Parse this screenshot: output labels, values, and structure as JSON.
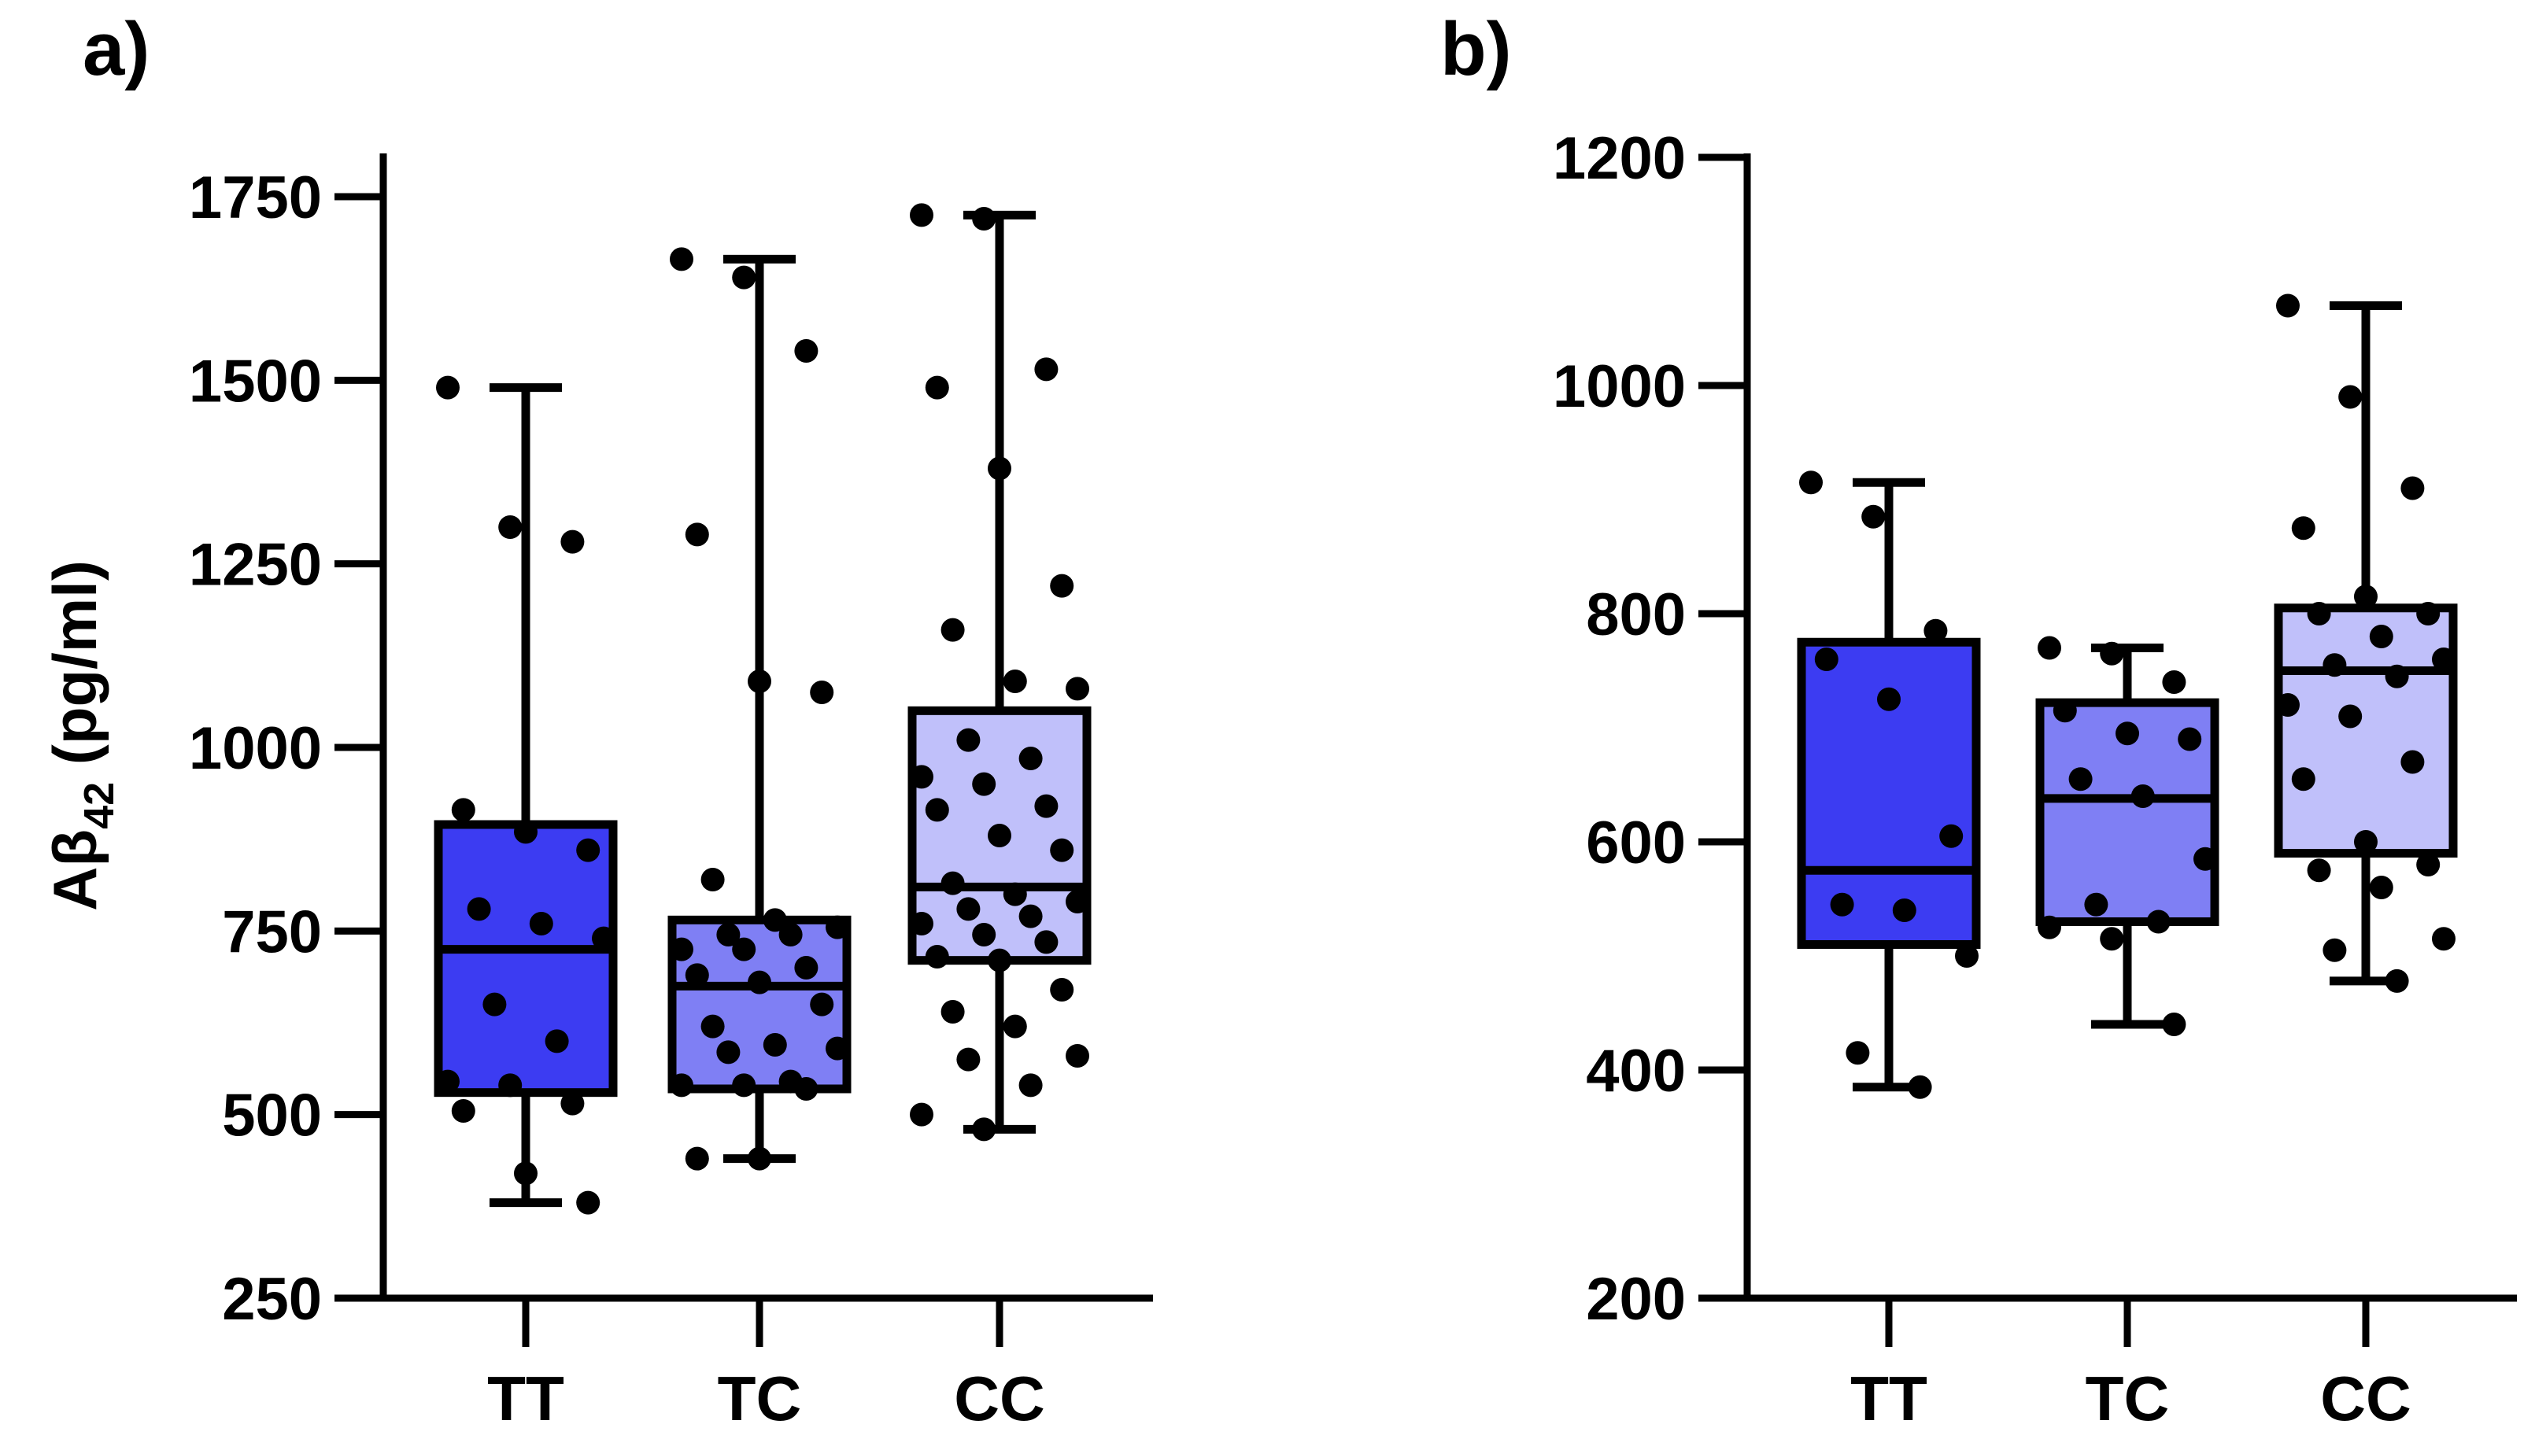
{
  "chart_data": [
    {
      "type": "box",
      "panel_label": "a)",
      "ylabel_main": "Aβ",
      "ylabel_sub": "42",
      "ylabel_unit": "(pg/ml)",
      "ylim": [
        250,
        1800
      ],
      "yticks": [
        250,
        500,
        750,
        1000,
        1250,
        1500,
        1750
      ],
      "categories": [
        "TT",
        "TC",
        "CC"
      ],
      "colors": [
        "#3c3cf2",
        "#7f7ff4",
        "#c0c0fa"
      ],
      "boxes": [
        {
          "min": 380,
          "q1": 530,
          "median": 725,
          "q3": 895,
          "max": 1490,
          "points": [
            1490,
            1300,
            1280,
            915,
            885,
            860,
            780,
            760,
            740,
            650,
            600,
            545,
            540,
            515,
            505,
            420,
            380
          ]
        },
        {
          "min": 440,
          "q1": 535,
          "median": 675,
          "q3": 765,
          "max": 1665,
          "points": [
            1665,
            1640,
            1540,
            1290,
            1090,
            1075,
            820,
            765,
            755,
            745,
            745,
            725,
            725,
            700,
            690,
            680,
            650,
            620,
            595,
            590,
            585,
            545,
            540,
            540,
            535,
            440,
            440
          ]
        },
        {
          "min": 480,
          "q1": 710,
          "median": 810,
          "q3": 1050,
          "max": 1725,
          "points": [
            1725,
            1720,
            1515,
            1490,
            1380,
            1220,
            1160,
            1090,
            1080,
            1010,
            985,
            960,
            950,
            920,
            915,
            880,
            860,
            815,
            800,
            790,
            780,
            770,
            760,
            745,
            735,
            715,
            710,
            670,
            640,
            620,
            580,
            575,
            540,
            500,
            480
          ]
        }
      ]
    },
    {
      "type": "box",
      "panel_label": "b)",
      "ylim": [
        200,
        1200
      ],
      "yticks": [
        200,
        400,
        600,
        800,
        1000,
        1200
      ],
      "categories": [
        "TT",
        "TC",
        "CC"
      ],
      "colors": [
        "#3c3cf2",
        "#7f7ff4",
        "#c0c0fa"
      ],
      "boxes": [
        {
          "min": 385,
          "q1": 510,
          "median": 575,
          "q3": 775,
          "max": 915,
          "points": [
            915,
            885,
            785,
            760,
            725,
            605,
            545,
            540,
            500,
            415,
            385
          ]
        },
        {
          "min": 440,
          "q1": 530,
          "median": 638,
          "q3": 722,
          "max": 770,
          "points": [
            770,
            765,
            740,
            715,
            695,
            690,
            655,
            640,
            585,
            545,
            530,
            525,
            515,
            440
          ]
        },
        {
          "min": 478,
          "q1": 590,
          "median": 750,
          "q3": 805,
          "max": 1070,
          "points": [
            1070,
            990,
            910,
            875,
            815,
            800,
            800,
            780,
            760,
            755,
            745,
            720,
            710,
            670,
            655,
            600,
            580,
            575,
            560,
            515,
            505,
            478
          ]
        }
      ]
    }
  ]
}
